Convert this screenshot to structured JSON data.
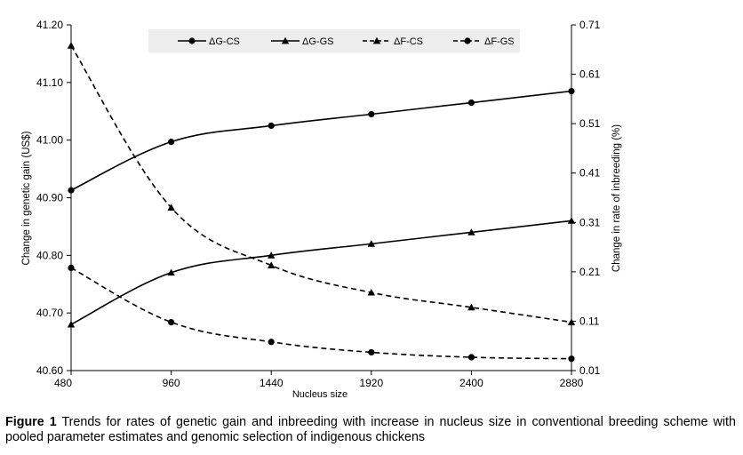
{
  "chart_data": {
    "type": "line",
    "title": "",
    "xlabel": "Nucleus size",
    "ylabel_left": "Change in genetic gain (US$)",
    "ylabel_right": "Change in rate of inbreeding (%)",
    "x": [
      480,
      960,
      1440,
      1920,
      2400,
      2880
    ],
    "x_tick_labels": [
      "480",
      "960",
      "1440",
      "1920",
      "2400",
      "2880"
    ],
    "ylim_left": [
      40.6,
      41.2
    ],
    "ylim_right": [
      0.01,
      0.71
    ],
    "y_left_ticks": [
      "40.60",
      "40.70",
      "40.80",
      "40.90",
      "41.00",
      "41.10",
      "41.20"
    ],
    "y_right_ticks": [
      "0.01",
      "0.11",
      "0.21",
      "0.31",
      "0.41",
      "0.51",
      "0.61",
      "0.71"
    ],
    "legend_position": "top",
    "series": [
      {
        "name": "ΔG-CS",
        "axis": "left",
        "line": "solid",
        "marker": "circle",
        "values": [
          40.913,
          40.997,
          41.025,
          41.045,
          41.065,
          41.085
        ]
      },
      {
        "name": "ΔG-GS",
        "axis": "left",
        "line": "solid",
        "marker": "triangle",
        "values": [
          40.68,
          40.77,
          40.8,
          40.82,
          40.84,
          40.86
        ]
      },
      {
        "name": "ΔF-CS",
        "axis": "right",
        "line": "dashed",
        "marker": "triangle",
        "values": [
          0.668,
          0.34,
          0.223,
          0.168,
          0.138,
          0.108
        ]
      },
      {
        "name": "ΔF-GS",
        "axis": "right",
        "line": "dashed",
        "marker": "circle",
        "values": [
          0.218,
          0.108,
          0.068,
          0.047,
          0.037,
          0.034
        ]
      }
    ]
  },
  "caption": {
    "label": "Figure 1",
    "text": "Trends for rates of genetic gain and inbreeding with increase in nucleus size in conventional breeding scheme with pooled parameter estimates and genomic selection of indigenous chickens"
  }
}
